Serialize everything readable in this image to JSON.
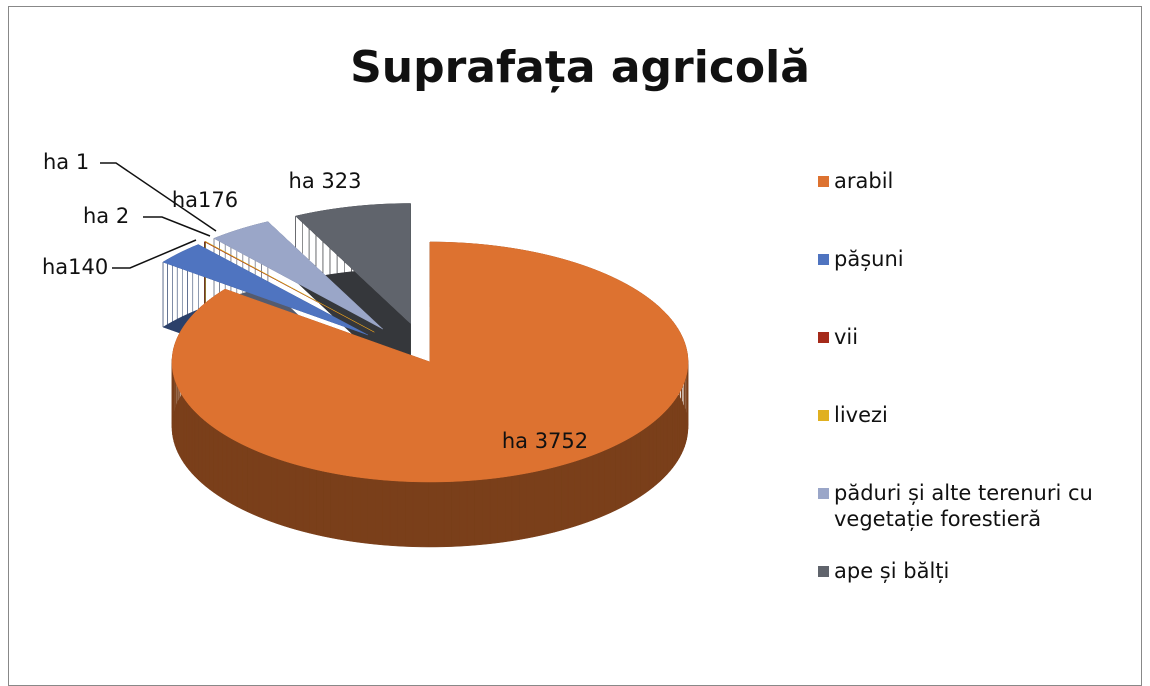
{
  "chart_data": {
    "type": "pie3d",
    "title": "Suprafața agricolă",
    "categories": [
      "arabil",
      "pășuni",
      "vii",
      "livezi",
      "păduri și alte terenuri cu vegetație forestieră",
      "ape și bălți"
    ],
    "values": [
      3752,
      140,
      2,
      1,
      176,
      323
    ],
    "value_labels": [
      "ha 3752",
      "ha140",
      "ha 2",
      "ha 1",
      "ha176",
      "ha 323"
    ],
    "colors": [
      "#dd7230",
      "#4f74c0",
      "#a52a1a",
      "#e0b020",
      "#9aa6c8",
      "#60646c"
    ],
    "legend": "right"
  }
}
